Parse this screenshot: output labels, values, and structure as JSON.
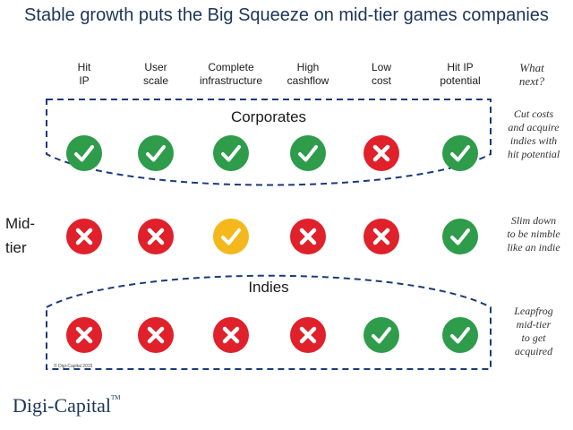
{
  "title": "Stable growth puts the Big Squeeze on mid-tier games companies",
  "columns": [
    {
      "label": "Hit\nIP"
    },
    {
      "label": "User\nscale"
    },
    {
      "label": "Complete\ninfrastructure"
    },
    {
      "label": "High\ncashflow"
    },
    {
      "label": "Low\ncost"
    },
    {
      "label": "Hit IP\npotential"
    }
  ],
  "what_next_label": "What\nnext?",
  "rows": [
    {
      "label": "Corporates",
      "cells": [
        "yes",
        "yes",
        "yes",
        "yes",
        "no",
        "yes"
      ],
      "note": "Cut costs\nand acquire\nindies with\nhit potential"
    },
    {
      "label": "Mid-\ntier",
      "cells": [
        "no",
        "no",
        "partial",
        "no",
        "no",
        "yes"
      ],
      "note": "Slim down\nto be nimble\nlike an indie"
    },
    {
      "label": "Indies",
      "cells": [
        "no",
        "no",
        "no",
        "no",
        "yes",
        "yes"
      ],
      "note": "Leapfrog\nmid-tier\nto get\nacquired"
    }
  ],
  "colors": {
    "yes": "#2e9c4a",
    "no": "#e0202a",
    "partial": "#f5b81c",
    "dash": "#1c3a78",
    "title": "#1c3557"
  },
  "icons": {
    "yes": "check-icon",
    "no": "cross-icon",
    "partial": "check-icon"
  },
  "copyright": "© Digi-Capital 2015",
  "logo": {
    "text": "Digi-Capital",
    "tm": "TM"
  }
}
